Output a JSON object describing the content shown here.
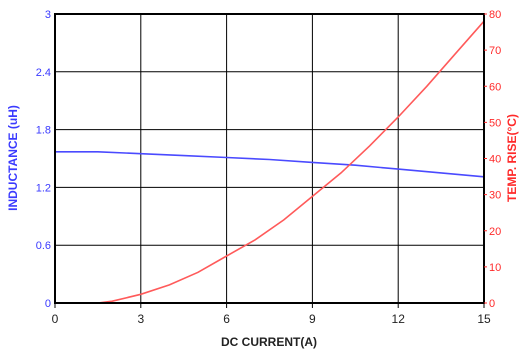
{
  "chart_data": {
    "type": "line",
    "title": "",
    "xlabel": "DC CURRENT(A)",
    "ylabel": "INDUCTANCE (uH)",
    "y2label": "TEMP. RISE(°C)",
    "xlim": [
      0,
      15
    ],
    "ylim": [
      0,
      3
    ],
    "y2lim": [
      0,
      80
    ],
    "xticks": [
      "0",
      "3",
      "6",
      "9",
      "12",
      "15"
    ],
    "yticks": [
      "0",
      "0.6",
      "1.2",
      "1.8",
      "2.4",
      "3"
    ],
    "y2ticks": [
      "0",
      "10",
      "20",
      "30",
      "40",
      "50",
      "60",
      "70",
      "80"
    ],
    "grid": true,
    "series": [
      {
        "axis": "left",
        "color": "#4a4aff",
        "x": [
          0,
          1.5,
          3,
          4.5,
          6,
          7.5,
          9,
          10.5,
          12,
          13.5,
          15
        ],
        "y": [
          1.57,
          1.57,
          1.55,
          1.53,
          1.51,
          1.49,
          1.46,
          1.43,
          1.39,
          1.35,
          1.31
        ]
      },
      {
        "axis": "right",
        "color": "#ff5a5a",
        "x": [
          1.5,
          2,
          3,
          4,
          5,
          6,
          7,
          8,
          9,
          10,
          11,
          12,
          13,
          14,
          15
        ],
        "y": [
          0,
          0.5,
          2.4,
          5,
          8.5,
          13,
          17.5,
          23,
          29.5,
          36,
          43.5,
          51.5,
          60,
          69,
          78
        ]
      }
    ],
    "colors": {
      "left_axis": "#3a3aff",
      "right_axis": "#ff2a2a",
      "grid": "#000000"
    }
  }
}
